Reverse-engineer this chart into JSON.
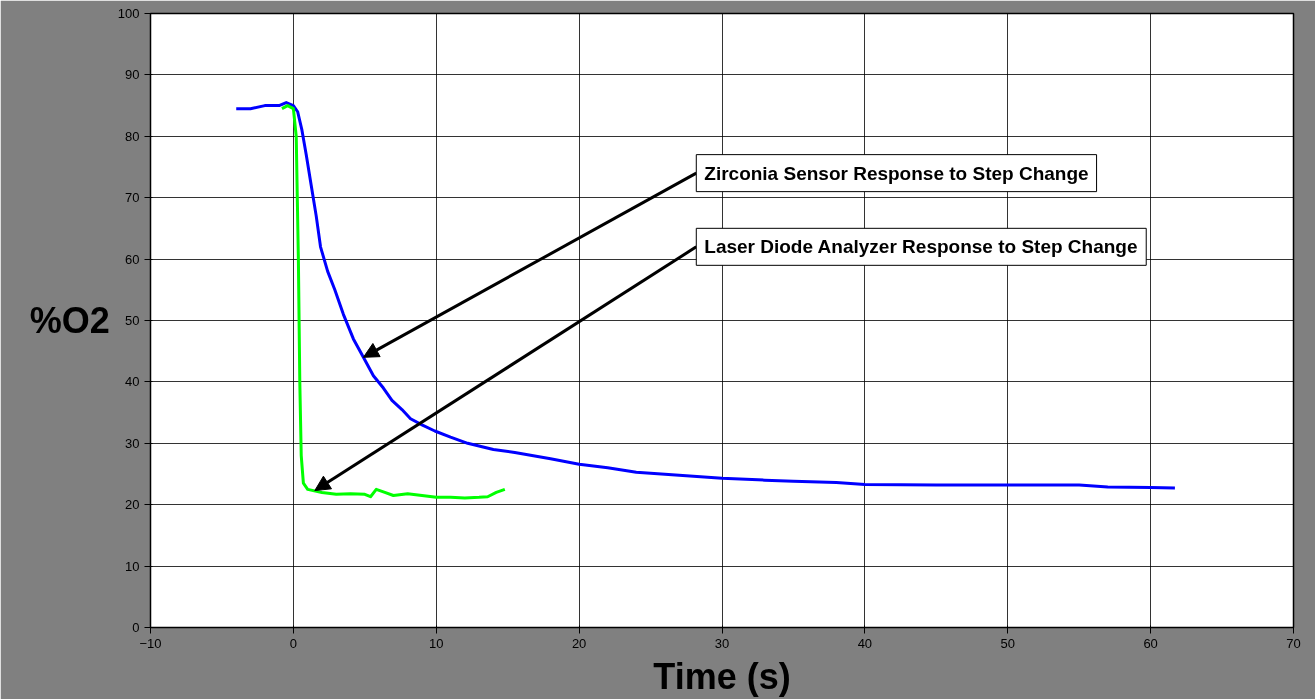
{
  "chart_data": {
    "type": "line",
    "xlabel": "Time (s)",
    "ylabel": "%O2",
    "xlim": [
      -10,
      70
    ],
    "xticks": [
      -10,
      0,
      10,
      20,
      30,
      40,
      50,
      60,
      70
    ],
    "ylim": [
      0,
      100
    ],
    "yticks": [
      0,
      10,
      20,
      30,
      40,
      50,
      60,
      70,
      80,
      90,
      100
    ],
    "grid": true,
    "line_style": "solid",
    "marker": "none",
    "series": [
      {
        "color": "#0000ff",
        "x": [
          -4,
          -3,
          -2,
          -1,
          -0.5,
          0,
          0.3,
          0.6,
          0.9,
          1.25,
          1.6,
          1.9,
          2.4,
          2.9,
          3.5,
          4.2,
          4.9,
          5.6,
          6.3,
          6.9,
          7.6,
          8.2,
          9,
          9.9,
          11,
          12.2,
          14,
          15.5,
          18,
          20,
          22,
          24,
          27,
          30,
          33,
          35,
          38,
          40,
          45,
          50,
          55,
          57,
          60,
          61.7
        ],
        "values": [
          84.5,
          84.5,
          85,
          85,
          85.5,
          85,
          84,
          81,
          77,
          72,
          67,
          62,
          58,
          55,
          51,
          47,
          44,
          41,
          39,
          37,
          35.5,
          34,
          33,
          32,
          31,
          30,
          29,
          28.5,
          27.5,
          26.6,
          26,
          25.3,
          24.8,
          24.3,
          24,
          23.8,
          23.6,
          23.3,
          23.2,
          23.2,
          23.2,
          22.9,
          22.8,
          22.7
        ]
      },
      {
        "color": "#00ff00",
        "x": [
          -0.8,
          -0.4,
          0,
          0.2,
          0.35,
          0.45,
          0.55,
          0.7,
          1,
          2,
          3,
          4,
          5,
          5.4,
          5.8,
          6.4,
          7,
          8,
          9,
          10,
          11,
          12,
          13,
          13.6,
          14.2,
          14.8
        ],
        "values": [
          84.5,
          85,
          84.5,
          80,
          60,
          40,
          28,
          23.5,
          22.5,
          22,
          21.7,
          21.8,
          21.7,
          21.3,
          22.5,
          22,
          21.5,
          21.8,
          21.5,
          21.2,
          21.2,
          21.1,
          21.2,
          21.3,
          22,
          22.5
        ]
      }
    ],
    "annotations": [
      {
        "text": "Zirconia Sensor Response to Step Change",
        "x": 4.9,
        "y": 44
      },
      {
        "text": "Laser Diode Analyzer Response to Step Change",
        "x": 1.5,
        "y": 22.3
      }
    ]
  }
}
